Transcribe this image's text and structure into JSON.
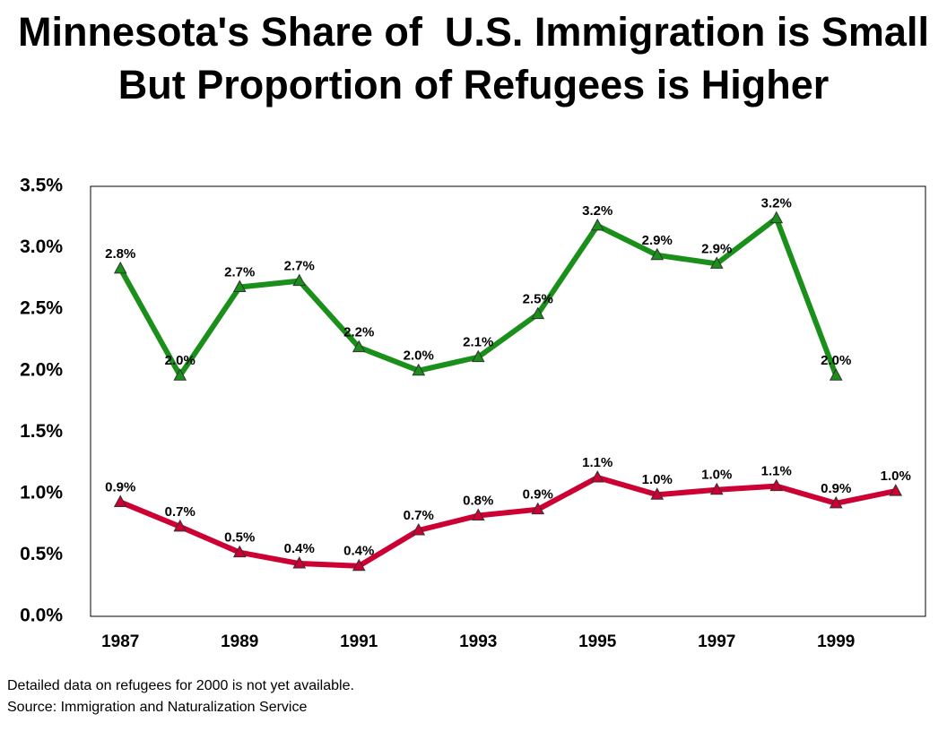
{
  "chart_data": {
    "type": "line",
    "title": "Minnesota's Share of  U.S. Immigration is Small But Proportion of Refugees is Higher",
    "categories": [
      "1987",
      null,
      "1989",
      null,
      "1991",
      null,
      "1993",
      null,
      "1995",
      null,
      "1997",
      null,
      "1999",
      null
    ],
    "series": [
      {
        "color": "#1a8f1a",
        "values": [
          2.83,
          1.96,
          2.68,
          2.73,
          2.19,
          2.0,
          2.11,
          2.46,
          3.18,
          2.94,
          2.87,
          3.24,
          1.96,
          null
        ],
        "value_labels": [
          "2.8%",
          "2.0%",
          "2.7%",
          "2.7%",
          "2.2%",
          "2.0%",
          "2.1%",
          "2.5%",
          "3.2%",
          "2.9%",
          "2.9%",
          "3.2%",
          "2.0%",
          null
        ]
      },
      {
        "color": "#cc0033",
        "values": [
          0.93,
          0.73,
          0.52,
          0.43,
          0.41,
          0.7,
          0.82,
          0.87,
          1.13,
          0.99,
          1.03,
          1.06,
          0.92,
          1.02
        ],
        "value_labels": [
          "0.9%",
          "0.7%",
          "0.5%",
          "0.4%",
          "0.4%",
          "0.7%",
          "0.8%",
          "0.9%",
          "1.1%",
          "1.0%",
          "1.0%",
          "1.1%",
          "0.9%",
          "1.0%"
        ]
      }
    ],
    "ylim": [
      0,
      3.5
    ],
    "yticks": [
      {
        "value": 0,
        "label": "0.0%"
      },
      {
        "value": 0.5,
        "label": "0.5%"
      },
      {
        "value": 1,
        "label": "1.0%"
      },
      {
        "value": 1.5,
        "label": "1.5%"
      },
      {
        "value": 2,
        "label": "2.0%"
      },
      {
        "value": 2.5,
        "label": "2.5%"
      },
      {
        "value": 3,
        "label": "3.0%"
      },
      {
        "value": 3.5,
        "label": "3.5%"
      }
    ],
    "grid": false,
    "notes": [
      "Detailed data on refugees for 2000 is not yet available.",
      "Source: Immigration and Naturalization Service"
    ]
  }
}
